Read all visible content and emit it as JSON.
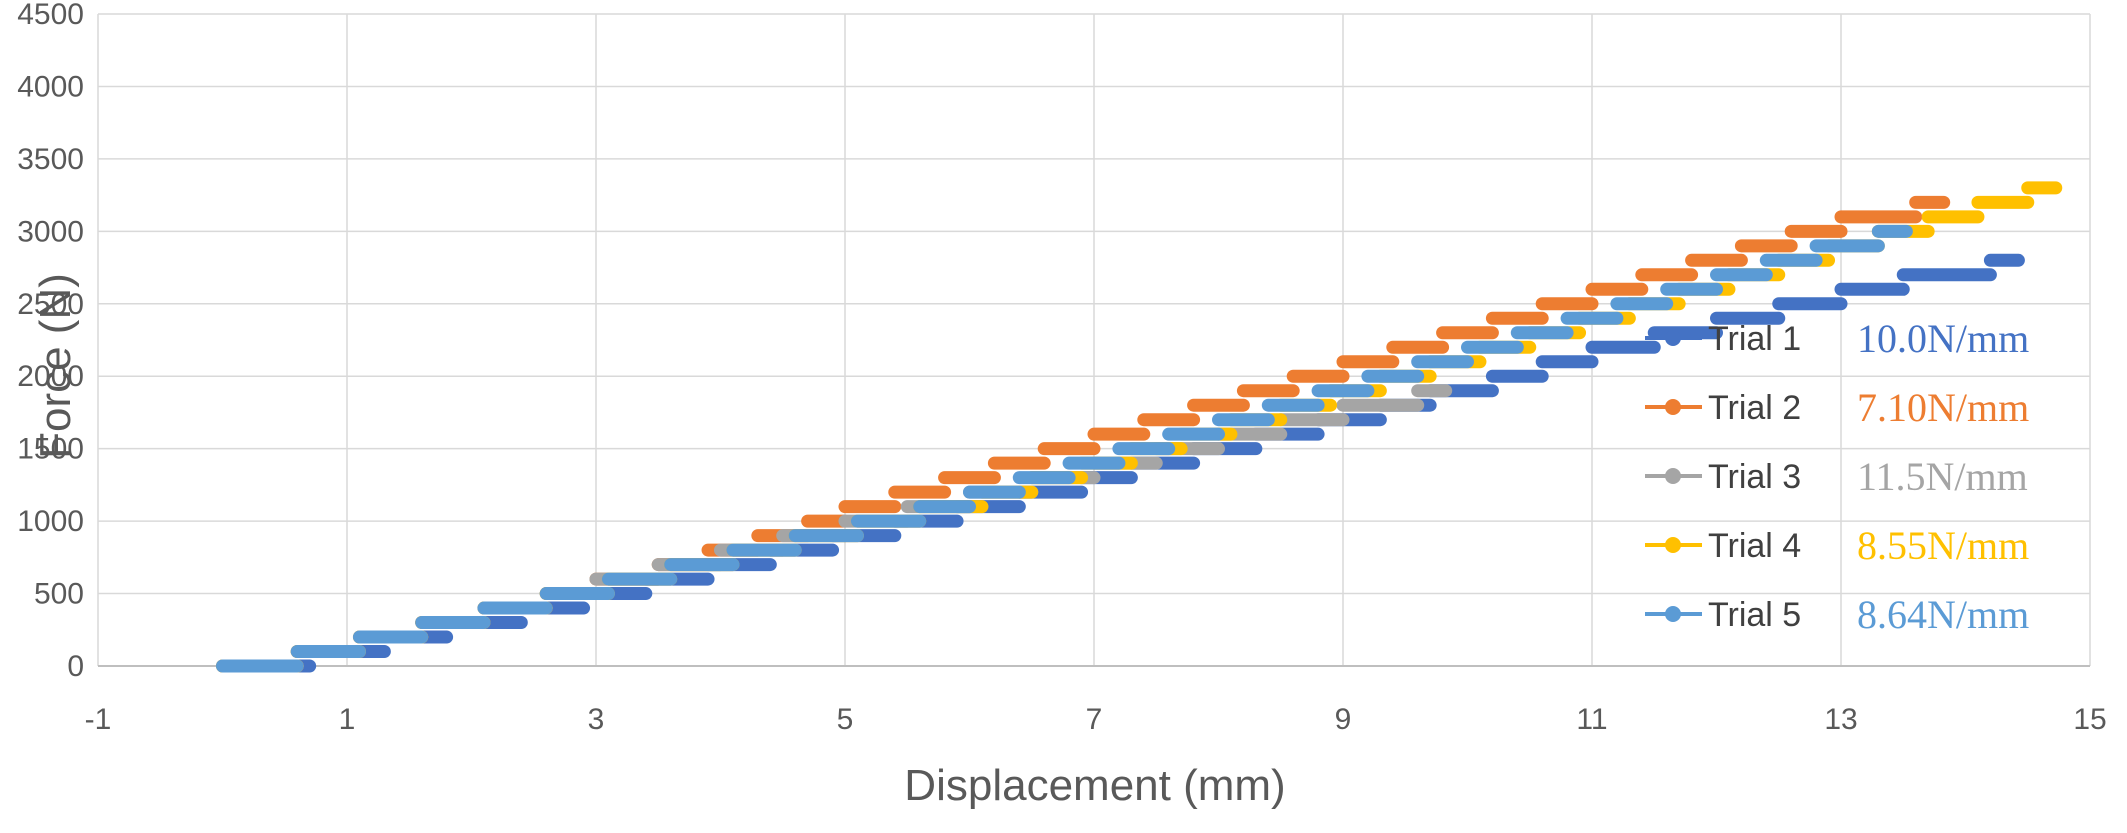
{
  "chart_data": {
    "type": "scatter",
    "title": "",
    "xlabel": "Displacement (mm)",
    "ylabel": "Force (N)",
    "xlim": [
      -1,
      15
    ],
    "ylim": [
      0,
      4500
    ],
    "x_ticks": [
      "-1",
      "1",
      "3",
      "5",
      "7",
      "9",
      "11",
      "13",
      "15"
    ],
    "y_ticks": [
      "0",
      "500",
      "1000",
      "1500",
      "2000",
      "2500",
      "3000",
      "3500",
      "4000",
      "4500"
    ],
    "grid": true,
    "legend_position": "bottom-right",
    "series": [
      {
        "name": "Trial 1",
        "color": "#4472C4",
        "stiffness_label": "10.0N/mm",
        "x": [
          0,
          0.7,
          1.3,
          1.8,
          2.4,
          2.9,
          3.4,
          3.9,
          4.4,
          4.9,
          5.4,
          5.9,
          6.4,
          6.9,
          7.3,
          7.8,
          8.3,
          8.8,
          9.3,
          9.7,
          10.2,
          10.6,
          11.0,
          11.5,
          12.0,
          12.5,
          13.0,
          13.5,
          14.2
        ],
        "y": [
          0,
          100,
          200,
          300,
          400,
          500,
          600,
          700,
          800,
          900,
          1000,
          1100,
          1200,
          1300,
          1400,
          1500,
          1600,
          1700,
          1800,
          1900,
          2000,
          2100,
          2200,
          2300,
          2400,
          2500,
          2600,
          2700,
          2800
        ]
      },
      {
        "name": "Trial 2",
        "color": "#ED7D31",
        "stiffness_label": "7.10N/mm",
        "x": [
          0,
          0.6,
          1.1,
          1.6,
          2.1,
          2.6,
          3.0,
          3.5,
          3.9,
          4.3,
          4.7,
          5.0,
          5.4,
          5.8,
          6.2,
          6.6,
          7.0,
          7.4,
          7.8,
          8.2,
          8.6,
          9.0,
          9.4,
          9.8,
          10.2,
          10.6,
          11.0,
          11.4,
          11.8,
          12.2,
          12.6,
          13.0,
          13.6
        ],
        "y": [
          0,
          100,
          200,
          300,
          400,
          500,
          600,
          700,
          800,
          900,
          1000,
          1100,
          1200,
          1300,
          1400,
          1500,
          1600,
          1700,
          1800,
          1900,
          2000,
          2100,
          2200,
          2300,
          2400,
          2500,
          2600,
          2700,
          2800,
          2900,
          3000,
          3100,
          3200
        ]
      },
      {
        "name": "Trial 3",
        "color": "#A5A5A5",
        "stiffness_label": "11.5N/mm",
        "x": [
          0,
          0.6,
          1.1,
          1.6,
          2.1,
          2.6,
          3.0,
          3.5,
          4.0,
          4.5,
          5.0,
          5.5,
          6.0,
          6.5,
          7.0,
          7.5,
          8.0,
          8.5,
          9.0,
          9.6
        ],
        "y": [
          0,
          100,
          200,
          300,
          400,
          500,
          600,
          700,
          800,
          900,
          1000,
          1100,
          1200,
          1300,
          1400,
          1500,
          1600,
          1700,
          1800,
          1900
        ]
      },
      {
        "name": "Trial 4",
        "color": "#FFC000",
        "stiffness_label": "8.55N/mm",
        "x": [
          0,
          0.6,
          1.1,
          1.6,
          2.1,
          2.6,
          3.1,
          3.6,
          4.1,
          4.6,
          5.1,
          5.6,
          6.1,
          6.5,
          6.9,
          7.3,
          7.7,
          8.1,
          8.5,
          8.9,
          9.3,
          9.7,
          10.1,
          10.5,
          10.9,
          11.3,
          11.7,
          12.1,
          12.5,
          12.9,
          13.3,
          13.7,
          14.1,
          14.5
        ],
        "y": [
          0,
          100,
          200,
          300,
          400,
          500,
          600,
          700,
          800,
          900,
          1000,
          1100,
          1200,
          1300,
          1400,
          1500,
          1600,
          1700,
          1800,
          1900,
          2000,
          2100,
          2200,
          2300,
          2400,
          2500,
          2600,
          2700,
          2800,
          2900,
          3000,
          3100,
          3200,
          3300
        ]
      },
      {
        "name": "Trial 5",
        "color": "#5B9BD5",
        "stiffness_label": "8.64N/mm",
        "x": [
          0,
          0.6,
          1.1,
          1.6,
          2.1,
          2.6,
          3.1,
          3.6,
          4.1,
          4.6,
          5.1,
          5.6,
          6.0,
          6.4,
          6.8,
          7.2,
          7.6,
          8.0,
          8.4,
          8.8,
          9.2,
          9.6,
          10.0,
          10.4,
          10.8,
          11.2,
          11.6,
          12.0,
          12.4,
          12.8,
          13.3
        ],
        "y": [
          0,
          100,
          200,
          300,
          400,
          500,
          600,
          700,
          800,
          900,
          1000,
          1100,
          1200,
          1300,
          1400,
          1500,
          1600,
          1700,
          1800,
          1900,
          2000,
          2100,
          2200,
          2300,
          2400,
          2500,
          2600,
          2700,
          2800,
          2900,
          3000
        ]
      }
    ]
  }
}
